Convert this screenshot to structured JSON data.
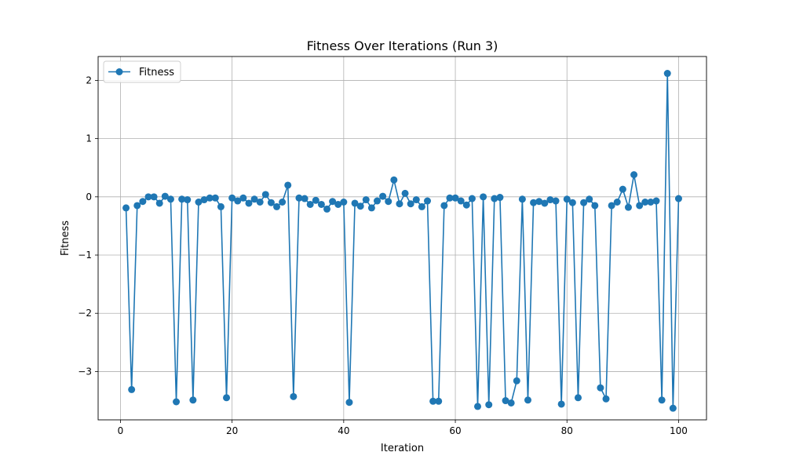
{
  "chart_data": {
    "type": "line",
    "title": "Fitness Over Iterations (Run 3)",
    "xlabel": "Iteration",
    "ylabel": "Fitness",
    "xlim": [
      -4,
      105
    ],
    "ylim": [
      -3.83,
      2.41
    ],
    "xticks": [
      0,
      20,
      40,
      60,
      80,
      100
    ],
    "xtick_labels": [
      "0",
      "20",
      "40",
      "60",
      "80",
      "100"
    ],
    "yticks": [
      -3,
      -2,
      -1,
      0,
      1,
      2
    ],
    "ytick_labels": [
      "−3",
      "−2",
      "−1",
      "0",
      "1",
      "2"
    ],
    "grid": true,
    "legend_position": "top-left",
    "series": [
      {
        "name": "Fitness",
        "color": "#1f77b4",
        "marker": "circle",
        "x": [
          1,
          2,
          3,
          4,
          5,
          6,
          7,
          8,
          9,
          10,
          11,
          12,
          13,
          14,
          15,
          16,
          17,
          18,
          19,
          20,
          21,
          22,
          23,
          24,
          25,
          26,
          27,
          28,
          29,
          30,
          31,
          32,
          33,
          34,
          35,
          36,
          37,
          38,
          39,
          40,
          41,
          42,
          43,
          44,
          45,
          46,
          47,
          48,
          49,
          50,
          51,
          52,
          53,
          54,
          55,
          56,
          57,
          58,
          59,
          60,
          61,
          62,
          63,
          64,
          65,
          66,
          67,
          68,
          69,
          70,
          71,
          72,
          73,
          74,
          75,
          76,
          77,
          78,
          79,
          80,
          81,
          82,
          83,
          84,
          85,
          86,
          87,
          88,
          89,
          90,
          91,
          92,
          93,
          94,
          95,
          96,
          97,
          98,
          99,
          100
        ],
        "y": [
          -0.19,
          -3.31,
          -0.15,
          -0.08,
          0.0,
          0.0,
          -0.11,
          0.01,
          -0.04,
          -3.52,
          -0.04,
          -0.05,
          -3.49,
          -0.09,
          -0.05,
          -0.02,
          -0.02,
          -0.17,
          -3.45,
          -0.02,
          -0.07,
          -0.02,
          -0.11,
          -0.04,
          -0.09,
          0.04,
          -0.1,
          -0.17,
          -0.09,
          0.2,
          -3.43,
          -0.02,
          -0.03,
          -0.13,
          -0.06,
          -0.13,
          -0.21,
          -0.08,
          -0.13,
          -0.09,
          -3.53,
          -0.11,
          -0.16,
          -0.05,
          -0.19,
          -0.07,
          0.01,
          -0.08,
          0.29,
          -0.12,
          0.06,
          -0.12,
          -0.05,
          -0.17,
          -0.07,
          -3.51,
          -3.51,
          -0.15,
          -0.02,
          -0.02,
          -0.07,
          -0.14,
          -0.03,
          -3.6,
          0.0,
          -3.57,
          -0.03,
          -0.01,
          -3.5,
          -3.54,
          -3.16,
          -0.04,
          -3.49,
          -0.1,
          -0.08,
          -0.11,
          -0.05,
          -0.07,
          -3.56,
          -0.04,
          -0.1,
          -3.45,
          -0.1,
          -0.04,
          -0.15,
          -3.28,
          -3.47,
          -0.15,
          -0.09,
          0.13,
          -0.18,
          0.38,
          -0.15,
          -0.09,
          -0.09,
          -0.07,
          -3.49,
          2.12,
          -3.63,
          -0.03
        ]
      }
    ]
  }
}
